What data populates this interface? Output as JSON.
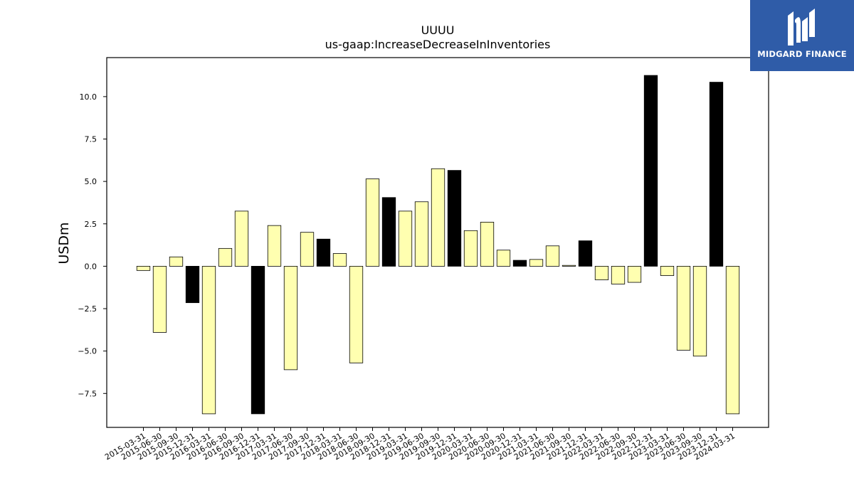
{
  "logo": {
    "text": "MIDGARD FINANCE",
    "icon": "midgard-logo-icon"
  },
  "colors": {
    "positive_highlight": "#000000",
    "default_bar": "#ffffb0",
    "bar_edge": "#000000"
  },
  "chart_data": {
    "type": "bar",
    "title": "UUUU",
    "subtitle": "us-gaap:IncreaseDecreaseInInventories",
    "xlabel": "",
    "ylabel": "USDm",
    "ylim": [
      -9.5,
      12.3
    ],
    "yticks": [
      -7.5,
      -5.0,
      -2.5,
      0.0,
      2.5,
      5.0,
      7.5,
      10.0
    ],
    "ytick_labels": [
      "−7.5",
      "−5.0",
      "−2.5",
      "0.0",
      "2.5",
      "5.0",
      "7.5",
      "10.0"
    ],
    "grid": false,
    "legend": "none",
    "categories": [
      "2015-03-31",
      "2015-06-30",
      "2015-09-30",
      "2015-12-31",
      "2016-03-31",
      "2016-06-30",
      "2016-09-30",
      "2016-12-31",
      "2017-03-31",
      "2017-06-30",
      "2017-09-30",
      "2017-12-31",
      "2018-03-31",
      "2018-06-30",
      "2018-09-30",
      "2018-12-31",
      "2019-03-31",
      "2019-06-30",
      "2019-09-30",
      "2019-12-31",
      "2020-03-31",
      "2020-06-30",
      "2020-09-30",
      "2020-12-31",
      "2021-03-31",
      "2021-06-30",
      "2021-09-30",
      "2021-12-31",
      "2022-03-31",
      "2022-06-30",
      "2022-09-30",
      "2022-12-31",
      "2023-03-31",
      "2023-06-30",
      "2023-09-30",
      "2023-12-31",
      "2024-03-31"
    ],
    "values": [
      -0.25,
      -3.9,
      0.55,
      -2.15,
      -8.7,
      1.05,
      3.25,
      -8.7,
      2.4,
      -6.1,
      2.0,
      1.6,
      0.75,
      -5.7,
      5.15,
      4.05,
      3.25,
      3.8,
      5.75,
      5.65,
      2.1,
      2.6,
      0.95,
      0.35,
      0.4,
      1.2,
      0.05,
      1.5,
      -0.8,
      -1.05,
      -0.95,
      11.25,
      -0.55,
      -4.95,
      -5.3,
      10.85,
      -8.7
    ],
    "highlight": [
      false,
      false,
      false,
      true,
      false,
      false,
      false,
      true,
      false,
      false,
      false,
      true,
      false,
      false,
      false,
      true,
      false,
      false,
      false,
      true,
      false,
      false,
      false,
      true,
      false,
      false,
      false,
      true,
      false,
      false,
      false,
      true,
      false,
      false,
      false,
      true,
      false
    ]
  }
}
